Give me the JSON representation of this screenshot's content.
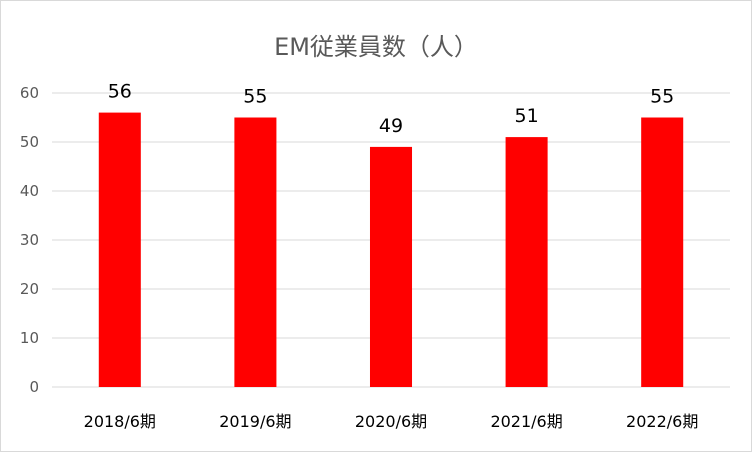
{
  "chart_data": {
    "type": "bar",
    "title": "EM従業員数（人）",
    "categories": [
      "2018/6期",
      "2019/6期",
      "2020/6期",
      "2021/6期",
      "2022/6期"
    ],
    "values": [
      56,
      55,
      49,
      51,
      55
    ],
    "ylim": [
      0,
      60
    ],
    "yticks": [
      0,
      10,
      20,
      30,
      40,
      50,
      60
    ],
    "xlabel": "",
    "ylabel": "",
    "grid": true,
    "bar_color": "#ff0000",
    "grid_color": "#d9d9d9"
  }
}
